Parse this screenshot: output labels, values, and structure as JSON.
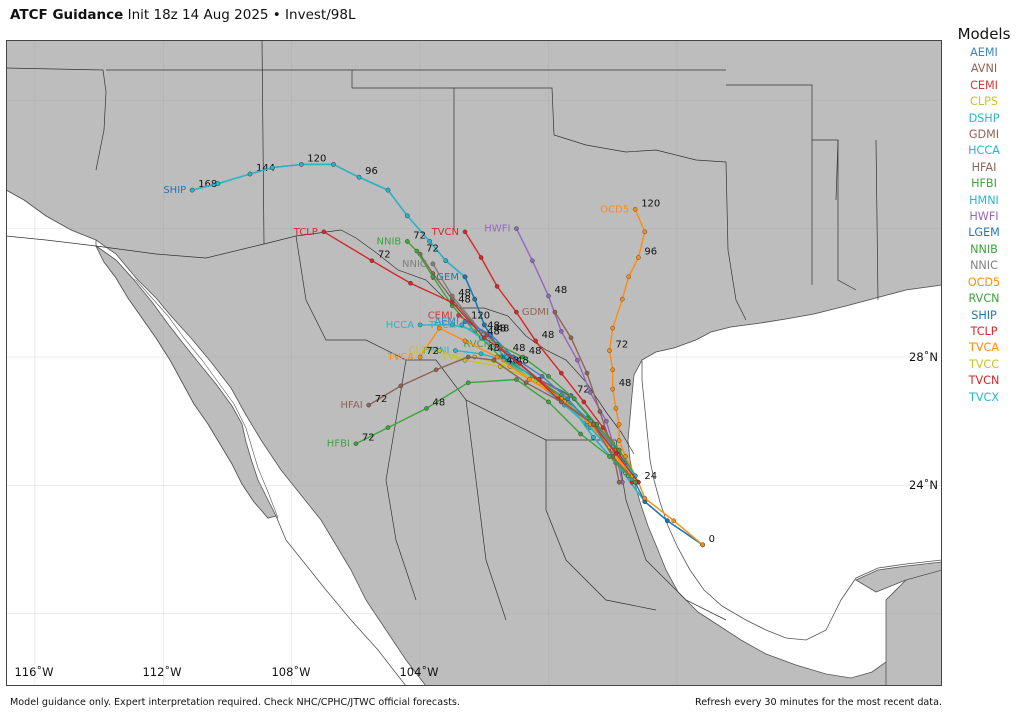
{
  "header": {
    "title": "ATCF Guidance",
    "subtitle": "Init 18z 14 Aug 2025 • Invest/98L"
  },
  "legend": {
    "title": "Models",
    "items": [
      {
        "name": "AEMI",
        "color": "#3a84c4"
      },
      {
        "name": "AVNI",
        "color": "#8f6456"
      },
      {
        "name": "CEMI",
        "color": "#d13b37"
      },
      {
        "name": "CLPS",
        "color": "#c8c228"
      },
      {
        "name": "DSHP",
        "color": "#27b7c9"
      },
      {
        "name": "GDMI",
        "color": "#8f6456"
      },
      {
        "name": "HCCA",
        "color": "#27b7c9"
      },
      {
        "name": "HFAI",
        "color": "#8f6456"
      },
      {
        "name": "HFBI",
        "color": "#3ca43a"
      },
      {
        "name": "HMNI",
        "color": "#27b7c9"
      },
      {
        "name": "HWFI",
        "color": "#9467bd"
      },
      {
        "name": "LGEM",
        "color": "#1f77b4"
      },
      {
        "name": "NNIB",
        "color": "#3ca43a"
      },
      {
        "name": "NNIC",
        "color": "#7f7f7f"
      },
      {
        "name": "OCD5",
        "color": "#ff8c0a"
      },
      {
        "name": "RVCN",
        "color": "#3ca43a"
      },
      {
        "name": "SHIP",
        "color": "#1f77b4"
      },
      {
        "name": "TCLP",
        "color": "#d62728"
      },
      {
        "name": "TVCA",
        "color": "#ff8c0a"
      },
      {
        "name": "TVCC",
        "color": "#c8c228"
      },
      {
        "name": "TVCN",
        "color": "#d62728"
      },
      {
        "name": "TVCX",
        "color": "#27b7c9"
      }
    ]
  },
  "map": {
    "lon_labels": [
      "116˚W",
      "112˚W",
      "108˚W",
      "104˚W"
    ],
    "lat_labels": [
      "28˚N",
      "24˚N"
    ],
    "land_color": "#bdbdbd",
    "water_color": "#ffffff",
    "border_color": "#333333"
  },
  "tracks": [
    {
      "model": "SHIP",
      "color": "#1f77b4",
      "label": "SHIP",
      "points": [
        [
          -95.2,
          22.15
        ],
        [
          -96.3,
          22.9
        ],
        [
          -97.0,
          23.5
        ],
        [
          -97.9,
          24.7
        ],
        [
          -98.6,
          25.5
        ],
        [
          -99.4,
          26.6
        ],
        [
          -100.5,
          27.4
        ],
        [
          -101.4,
          28.0
        ],
        [
          -102.0,
          29.0
        ],
        [
          -102.3,
          29.8
        ],
        [
          -102.6,
          30.5
        ],
        [
          -103.2,
          31.0
        ],
        [
          -103.7,
          31.6
        ],
        [
          -104.4,
          32.4
        ],
        [
          -105.0,
          33.2
        ],
        [
          -105.9,
          33.6
        ],
        [
          -106.7,
          34.0
        ],
        [
          -107.7,
          34.0
        ],
        [
          -108.6,
          33.9
        ],
        [
          -109.3,
          33.7
        ],
        [
          -110.3,
          33.4
        ],
        [
          -111.1,
          33.2
        ]
      ],
      "hour_labels": [
        {
          "i": 0,
          "t": "0"
        },
        {
          "i": 15,
          "t": "96"
        },
        {
          "i": 17,
          "t": "120"
        },
        {
          "i": 19,
          "t": "144"
        },
        {
          "i": 21,
          "t": "168"
        }
      ]
    },
    {
      "model": "DSHP",
      "color": "#27b7c9",
      "label": "",
      "points": [
        [
          -95.2,
          22.15
        ],
        [
          -96.3,
          22.9
        ],
        [
          -97.0,
          23.5
        ],
        [
          -97.9,
          24.7
        ],
        [
          -98.6,
          25.5
        ],
        [
          -99.4,
          26.6
        ],
        [
          -100.5,
          27.4
        ],
        [
          -101.4,
          28.0
        ],
        [
          -102.0,
          29.0
        ],
        [
          -102.3,
          29.8
        ],
        [
          -102.6,
          30.5
        ],
        [
          -103.2,
          31.0
        ],
        [
          -103.7,
          31.6
        ],
        [
          -104.4,
          32.4
        ],
        [
          -105.0,
          33.2
        ],
        [
          -105.9,
          33.6
        ],
        [
          -106.7,
          34.0
        ],
        [
          -107.7,
          34.0
        ],
        [
          -108.6,
          33.9
        ],
        [
          -109.3,
          33.7
        ],
        [
          -110.3,
          33.4
        ],
        [
          -111.1,
          33.2
        ]
      ],
      "hour_labels": []
    },
    {
      "model": "LGEM",
      "color": "#1f77b4",
      "label": "LGEM",
      "points": [
        [
          -95.2,
          22.15
        ],
        [
          -96.3,
          22.9
        ],
        [
          -97.0,
          23.5
        ],
        [
          -97.6,
          24.7
        ],
        [
          -98.2,
          25.5
        ],
        [
          -99.3,
          26.8
        ],
        [
          -100.5,
          27.4
        ],
        [
          -101.4,
          28.0
        ],
        [
          -102.0,
          29.0
        ],
        [
          -102.3,
          29.8
        ],
        [
          -102.6,
          30.5
        ]
      ],
      "hour_labels": [
        {
          "i": 5,
          "t": "72"
        }
      ]
    },
    {
      "model": "OCD5",
      "color": "#ff8c0a",
      "label": "OCD5",
      "points": [
        [
          -95.2,
          22.15
        ],
        [
          -96.1,
          22.9
        ],
        [
          -97.0,
          23.6
        ],
        [
          -97.2,
          24.1
        ],
        [
          -97.6,
          24.9
        ],
        [
          -97.8,
          25.4
        ],
        [
          -97.8,
          25.9
        ],
        [
          -97.9,
          26.4
        ],
        [
          -98.0,
          27.0
        ],
        [
          -98.0,
          27.6
        ],
        [
          -98.1,
          28.2
        ],
        [
          -98.0,
          28.9
        ],
        [
          -97.7,
          29.8
        ],
        [
          -97.5,
          30.5
        ],
        [
          -97.2,
          31.1
        ],
        [
          -97.0,
          31.9
        ],
        [
          -97.3,
          32.6
        ]
      ],
      "hour_labels": [
        {
          "i": 3,
          "t": "24"
        },
        {
          "i": 8,
          "t": "48"
        },
        {
          "i": 10,
          "t": "72"
        },
        {
          "i": 14,
          "t": "96"
        },
        {
          "i": 16,
          "t": "120"
        }
      ]
    },
    {
      "model": "HWFI",
      "color": "#9467bd",
      "label": "HWFI",
      "points": [
        [
          -97.7,
          24.1
        ],
        [
          -97.9,
          25.0
        ],
        [
          -98.2,
          26.0
        ],
        [
          -98.7,
          26.9
        ],
        [
          -99.1,
          27.9
        ],
        [
          -99.6,
          28.8
        ],
        [
          -100.0,
          29.9
        ],
        [
          -100.5,
          31.0
        ],
        [
          -101.0,
          32.0
        ]
      ],
      "hour_labels": [
        {
          "i": 6,
          "t": "48"
        }
      ]
    },
    {
      "model": "TVCN",
      "color": "#d62728",
      "label": "TVCN",
      "points": [
        [
          -97.4,
          24.1
        ],
        [
          -97.8,
          25.0
        ],
        [
          -98.3,
          25.8
        ],
        [
          -98.9,
          26.6
        ],
        [
          -99.6,
          27.5
        ],
        [
          -100.4,
          28.5
        ],
        [
          -101.0,
          29.4
        ],
        [
          -101.6,
          30.2
        ],
        [
          -102.1,
          31.1
        ],
        [
          -102.6,
          31.9
        ]
      ],
      "hour_labels": [
        {
          "i": 5,
          "t": "48"
        }
      ]
    },
    {
      "model": "GDMI",
      "color": "#8f6456",
      "label": "GDMI",
      "points": [
        [
          -97.8,
          24.1
        ],
        [
          -98.0,
          25.1
        ],
        [
          -98.4,
          26.3
        ],
        [
          -98.8,
          27.5
        ],
        [
          -99.3,
          28.6
        ],
        [
          -99.8,
          29.4
        ]
      ],
      "hour_labels": []
    },
    {
      "model": "AVNI",
      "color": "#8f6456",
      "label": "",
      "points": [
        [
          -97.3,
          24.3
        ],
        [
          -97.8,
          25.1
        ],
        [
          -98.5,
          25.9
        ],
        [
          -99.2,
          26.7
        ],
        [
          -100.3,
          27.3
        ],
        [
          -101.5,
          28.3
        ],
        [
          -102.4,
          29.1
        ],
        [
          -103.0,
          29.8
        ],
        [
          -103.6,
          30.6
        ],
        [
          -104.0,
          31.2
        ]
      ],
      "hour_labels": [
        {
          "i": 7,
          "t": "48"
        },
        {
          "i": 9,
          "t": "72"
        }
      ]
    },
    {
      "model": "NNIC",
      "color": "#7f7f7f",
      "label": "NNIC",
      "points": [
        [
          -97.6,
          24.4
        ],
        [
          -98.0,
          25.3
        ],
        [
          -98.7,
          26.0
        ],
        [
          -99.5,
          26.6
        ],
        [
          -100.3,
          27.3
        ],
        [
          -101.3,
          28.1
        ],
        [
          -102.1,
          28.8
        ],
        [
          -103.0,
          29.9
        ],
        [
          -103.6,
          30.9
        ]
      ],
      "hour_labels": [
        {
          "i": 5,
          "t": "48"
        }
      ]
    },
    {
      "model": "NNIB",
      "color": "#3ca43a",
      "label": "NNIB",
      "points": [
        [
          -97.6,
          24.4
        ],
        [
          -98.2,
          25.3
        ],
        [
          -98.8,
          26.1
        ],
        [
          -99.6,
          26.8
        ],
        [
          -100.5,
          27.4
        ],
        [
          -101.5,
          28.0
        ],
        [
          -102.3,
          28.8
        ],
        [
          -103.0,
          29.6
        ],
        [
          -103.6,
          30.5
        ],
        [
          -104.1,
          31.3
        ],
        [
          -104.4,
          31.6
        ]
      ],
      "hour_labels": [
        {
          "i": 7,
          "t": "48"
        },
        {
          "i": 10,
          "t": "72"
        }
      ]
    },
    {
      "model": "HCCA",
      "color": "#27b7c9",
      "label": "HCCA",
      "points": [
        [
          -97.4,
          24.3
        ],
        [
          -98.0,
          25.2
        ],
        [
          -98.7,
          26.0
        ],
        [
          -99.5,
          26.6
        ],
        [
          -100.3,
          27.3
        ],
        [
          -101.3,
          28.1
        ],
        [
          -102.1,
          28.8
        ],
        [
          -103.0,
          29.0
        ],
        [
          -104.0,
          29.0
        ]
      ],
      "hour_labels": [
        {
          "i": 6,
          "t": "48"
        }
      ]
    },
    {
      "model": "CEMI",
      "color": "#d13b37",
      "label": "CEMI",
      "points": [
        [
          -97.5,
          24.3
        ],
        [
          -98.0,
          25.1
        ],
        [
          -98.7,
          25.9
        ],
        [
          -99.5,
          26.6
        ],
        [
          -100.3,
          27.3
        ],
        [
          -101.2,
          28.0
        ],
        [
          -101.9,
          28.7
        ],
        [
          -102.8,
          29.3
        ]
      ],
      "hour_labels": [
        {
          "i": 6,
          "t": "48"
        }
      ]
    },
    {
      "model": "AEMI",
      "color": "#3a84c4",
      "label": "AEMI",
      "points": [
        [
          -97.5,
          24.3
        ],
        [
          -98.0,
          25.1
        ],
        [
          -98.7,
          25.9
        ],
        [
          -99.4,
          26.7
        ],
        [
          -100.2,
          27.4
        ],
        [
          -101.1,
          28.0
        ],
        [
          -101.8,
          28.7
        ],
        [
          -102.6,
          29.1
        ]
      ],
      "hour_labels": [
        {
          "i": 6,
          "t": "48"
        },
        {
          "i": 7,
          "t": "120"
        }
      ]
    },
    {
      "model": "RVCN",
      "color": "#3ca43a",
      "label": "RVCN",
      "points": [
        [
          -97.3,
          24.3
        ],
        [
          -97.8,
          25.1
        ],
        [
          -98.5,
          25.9
        ],
        [
          -99.2,
          26.7
        ],
        [
          -100.0,
          27.4
        ],
        [
          -100.8,
          28.0
        ],
        [
          -101.6,
          28.4
        ]
      ],
      "hour_labels": [
        {
          "i": 5,
          "t": "48"
        }
      ]
    },
    {
      "model": "TVCX",
      "color": "#27b7c9",
      "label": "TVCX",
      "points": [
        [
          -97.4,
          24.2
        ],
        [
          -98.0,
          25.0
        ],
        [
          -98.7,
          25.8
        ],
        [
          -99.5,
          26.5
        ],
        [
          -100.3,
          27.2
        ],
        [
          -101.3,
          28.0
        ],
        [
          -102.1,
          28.6
        ],
        [
          -102.7,
          29.0
        ]
      ],
      "hour_labels": [
        {
          "i": 6,
          "t": "48"
        }
      ]
    },
    {
      "model": "HMNI",
      "color": "#27b7c9",
      "label": "HMNI",
      "points": [
        [
          -97.3,
          24.3
        ],
        [
          -98.0,
          25.1
        ],
        [
          -98.8,
          25.9
        ],
        [
          -99.6,
          26.6
        ],
        [
          -100.5,
          27.3
        ],
        [
          -101.4,
          27.9
        ],
        [
          -102.1,
          28.1
        ],
        [
          -102.9,
          28.2
        ]
      ],
      "hour_labels": [
        {
          "i": 6,
          "t": "48"
        }
      ]
    },
    {
      "model": "CLPS",
      "color": "#c8c228",
      "label": "CLPS",
      "points": [
        [
          -97.6,
          24.4
        ],
        [
          -98.1,
          25.2
        ],
        [
          -98.8,
          26.0
        ],
        [
          -99.6,
          26.7
        ],
        [
          -100.5,
          27.3
        ],
        [
          -101.5,
          27.7
        ],
        [
          -102.6,
          27.9
        ],
        [
          -103.4,
          28.2
        ]
      ],
      "hour_labels": [
        {
          "i": 5,
          "t": "48"
        }
      ]
    },
    {
      "model": "TVCC",
      "color": "#c8c228",
      "label": "TVCC",
      "points": [
        [
          -97.4,
          24.3
        ],
        [
          -98.0,
          25.1
        ],
        [
          -98.7,
          25.9
        ],
        [
          -99.5,
          26.6
        ],
        [
          -100.3,
          27.2
        ],
        [
          -101.2,
          27.7
        ],
        [
          -102.3,
          28.0
        ]
      ],
      "hour_labels": [
        {
          "i": 5,
          "t": "48"
        }
      ]
    },
    {
      "model": "TVCA",
      "color": "#ff8c0a",
      "label": "TVCA",
      "points": [
        [
          -97.5,
          24.3
        ],
        [
          -98.0,
          25.1
        ],
        [
          -98.7,
          25.9
        ],
        [
          -99.6,
          26.7
        ],
        [
          -100.6,
          27.3
        ],
        [
          -101.6,
          28.0
        ],
        [
          -102.6,
          28.5
        ],
        [
          -103.4,
          28.9
        ],
        [
          -104.0,
          28.0
        ]
      ],
      "hour_labels": [
        {
          "i": 8,
          "t": "72"
        }
      ]
    },
    {
      "model": "TCLP",
      "color": "#d62728",
      "label": "TCLP",
      "points": [
        [
          -97.2,
          24.1
        ],
        [
          -97.9,
          25.0
        ],
        [
          -98.6,
          25.9
        ],
        [
          -99.7,
          26.7
        ],
        [
          -100.9,
          27.8
        ],
        [
          -102.0,
          28.6
        ],
        [
          -103.0,
          29.7
        ],
        [
          -104.3,
          30.3
        ],
        [
          -105.5,
          31.0
        ],
        [
          -107.0,
          31.9
        ]
      ],
      "hour_labels": [
        {
          "i": 8,
          "t": "72"
        }
      ]
    },
    {
      "model": "HFAI",
      "color": "#8f6456",
      "label": "HFAI",
      "points": [
        [
          -97.3,
          24.1
        ],
        [
          -98.0,
          24.9
        ],
        [
          -98.6,
          25.9
        ],
        [
          -99.6,
          26.6
        ],
        [
          -100.7,
          27.2
        ],
        [
          -101.7,
          27.9
        ],
        [
          -102.5,
          28.0
        ],
        [
          -103.5,
          27.6
        ],
        [
          -104.6,
          27.1
        ],
        [
          -105.6,
          26.5
        ]
      ],
      "hour_labels": [
        {
          "i": 9,
          "t": "72"
        }
      ]
    },
    {
      "model": "HFBI",
      "color": "#3ca43a",
      "label": "HFBI",
      "points": [
        [
          -97.3,
          24.1
        ],
        [
          -98.1,
          24.9
        ],
        [
          -99.0,
          25.6
        ],
        [
          -100.0,
          26.6
        ],
        [
          -101.0,
          27.3
        ],
        [
          -102.5,
          27.2
        ],
        [
          -103.8,
          26.4
        ],
        [
          -105.0,
          25.8
        ],
        [
          -106.0,
          25.3
        ]
      ],
      "hour_labels": [
        {
          "i": 6,
          "t": "48"
        },
        {
          "i": 8,
          "t": "72"
        }
      ]
    }
  ]
}
